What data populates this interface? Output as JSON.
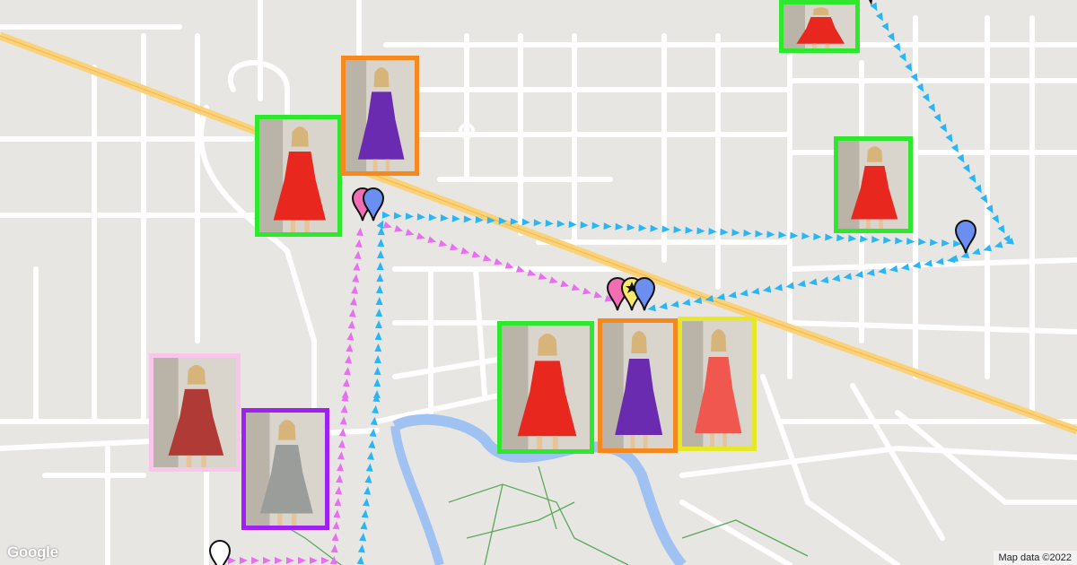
{
  "map": {
    "attribution": "Map data ©2022",
    "logo": "Google",
    "colors": {
      "land": "#e8e6e3",
      "road": "#ffffff",
      "highway": "#fbd27a",
      "water": "#9fc2f2",
      "path": "#5aa85a"
    }
  },
  "routes": [
    {
      "name": "blue-route",
      "color": "#29b6f6"
    },
    {
      "name": "pink-route",
      "color": "#e86ff0"
    }
  ],
  "markers": [
    {
      "name": "pink-pin",
      "color": "#f26eb4"
    },
    {
      "name": "blue-pin",
      "color": "#6b8ff0"
    },
    {
      "name": "pink-pin",
      "color": "#f26eb4"
    },
    {
      "name": "yellow-star-pin",
      "color": "#f7ea6a"
    },
    {
      "name": "blue-pin",
      "color": "#6b8ff0"
    },
    {
      "name": "blue-pin",
      "color": "#6b8ff0"
    },
    {
      "name": "white-pin",
      "color": "#ffffff"
    }
  ],
  "photos": [
    {
      "name": "red-dress-photo",
      "border": "#2ee82e",
      "dress": "#e8281e"
    },
    {
      "name": "purple-dress-photo",
      "border": "#f5891f",
      "dress": "#6a2bb0"
    },
    {
      "name": "red-dress-photo",
      "border": "#2ee82e",
      "dress": "#e8281e"
    },
    {
      "name": "red-dress-photo",
      "border": "#2ee82e",
      "dress": "#e8281e"
    },
    {
      "name": "red-dress-photo",
      "border": "#2ee82e",
      "dress": "#e8281e"
    },
    {
      "name": "purple-dress-photo",
      "border": "#f5891f",
      "dress": "#6a2bb0"
    },
    {
      "name": "coral-top-photo",
      "border": "#e8e82a",
      "dress": "#f0584f"
    },
    {
      "name": "floral-set-photo",
      "border": "#f7c6ea",
      "dress": "#b03a35"
    },
    {
      "name": "grey-sweatsuit-photo",
      "border": "#a020f0",
      "dress": "#9a9d9a"
    }
  ]
}
